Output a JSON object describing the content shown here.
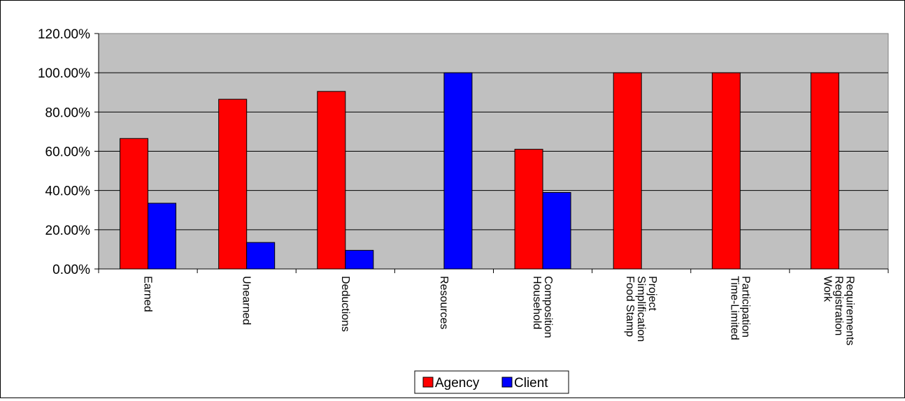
{
  "chart_data": {
    "type": "bar",
    "categories": [
      [
        "Earned"
      ],
      [
        "Unearned"
      ],
      [
        "Deductions"
      ],
      [
        "Resources"
      ],
      [
        "Household",
        "Composition"
      ],
      [
        "Food Stamp",
        "Simplification",
        "Project"
      ],
      [
        "Time-Limited",
        "Participation"
      ],
      [
        "Work",
        "Registration",
        "Requirements"
      ]
    ],
    "series": [
      {
        "name": "Agency",
        "color": "#ff0000",
        "values": [
          66.5,
          86.5,
          90.5,
          0,
          61.0,
          100,
          100,
          100
        ]
      },
      {
        "name": "Client",
        "color": "#0000ff",
        "values": [
          33.5,
          13.5,
          9.5,
          100,
          39.0,
          0,
          0,
          0
        ]
      }
    ],
    "ylim": [
      0,
      120
    ],
    "yticks": [
      "0.00%",
      "20.00%",
      "40.00%",
      "60.00%",
      "80.00%",
      "100.00%",
      "120.00%"
    ],
    "grid": true,
    "plot_background": "#c0c0c0",
    "legend_position": "bottom-center",
    "title": "",
    "xlabel": "",
    "ylabel": ""
  }
}
